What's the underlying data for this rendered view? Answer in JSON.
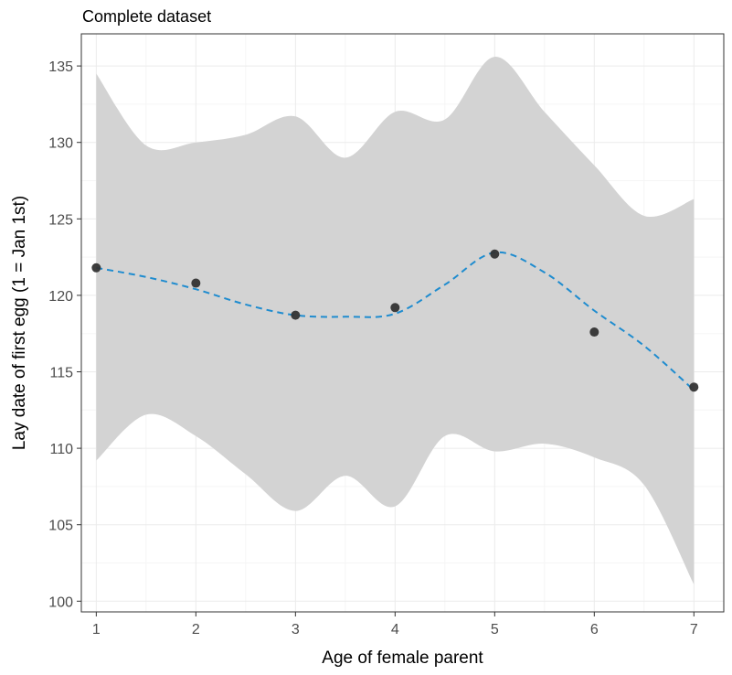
{
  "chart_data": {
    "type": "line",
    "title": "Complete dataset",
    "xlabel": "Age of female parent",
    "ylabel": "Lay date of first egg (1 = Jan 1st)",
    "xlim": [
      0.85,
      7.3
    ],
    "ylim": [
      99.3,
      137.1
    ],
    "x_ticks": [
      1,
      2,
      3,
      4,
      5,
      6,
      7
    ],
    "y_ticks": [
      100,
      105,
      110,
      115,
      120,
      125,
      130,
      135
    ],
    "grid": true,
    "legend": "none",
    "series": [
      {
        "type": "scatter",
        "x": [
          1,
          2,
          3,
          4,
          5,
          6,
          7
        ],
        "y": [
          121.8,
          120.8,
          118.7,
          119.2,
          122.7,
          117.6,
          114.0
        ]
      },
      {
        "type": "smooth",
        "x": [
          1,
          1.5,
          2,
          2.5,
          3,
          3.5,
          4,
          4.5,
          5,
          5.5,
          6,
          6.5,
          7
        ],
        "y": [
          121.8,
          121.2,
          120.4,
          119.4,
          118.7,
          118.6,
          118.8,
          120.7,
          122.8,
          121.5,
          119.0,
          116.7,
          113.8
        ],
        "ymin": [
          109.2,
          112.2,
          110.8,
          108.3,
          105.9,
          108.2,
          106.2,
          110.8,
          109.8,
          110.3,
          109.4,
          107.6,
          101.1
        ],
        "ymax": [
          134.5,
          129.8,
          130.0,
          130.5,
          131.7,
          129.0,
          132.0,
          131.5,
          135.6,
          132.0,
          128.5,
          125.2,
          126.3
        ]
      }
    ],
    "colors": {
      "panel_border": "#333333",
      "grid_major": "#ebebeb",
      "grid_minor": "#f5f5f5",
      "ribbon": "#d3d3d3",
      "points": "#333333",
      "smooth_line": "#1f8ccf",
      "tick_text": "#4d4d4d"
    }
  }
}
